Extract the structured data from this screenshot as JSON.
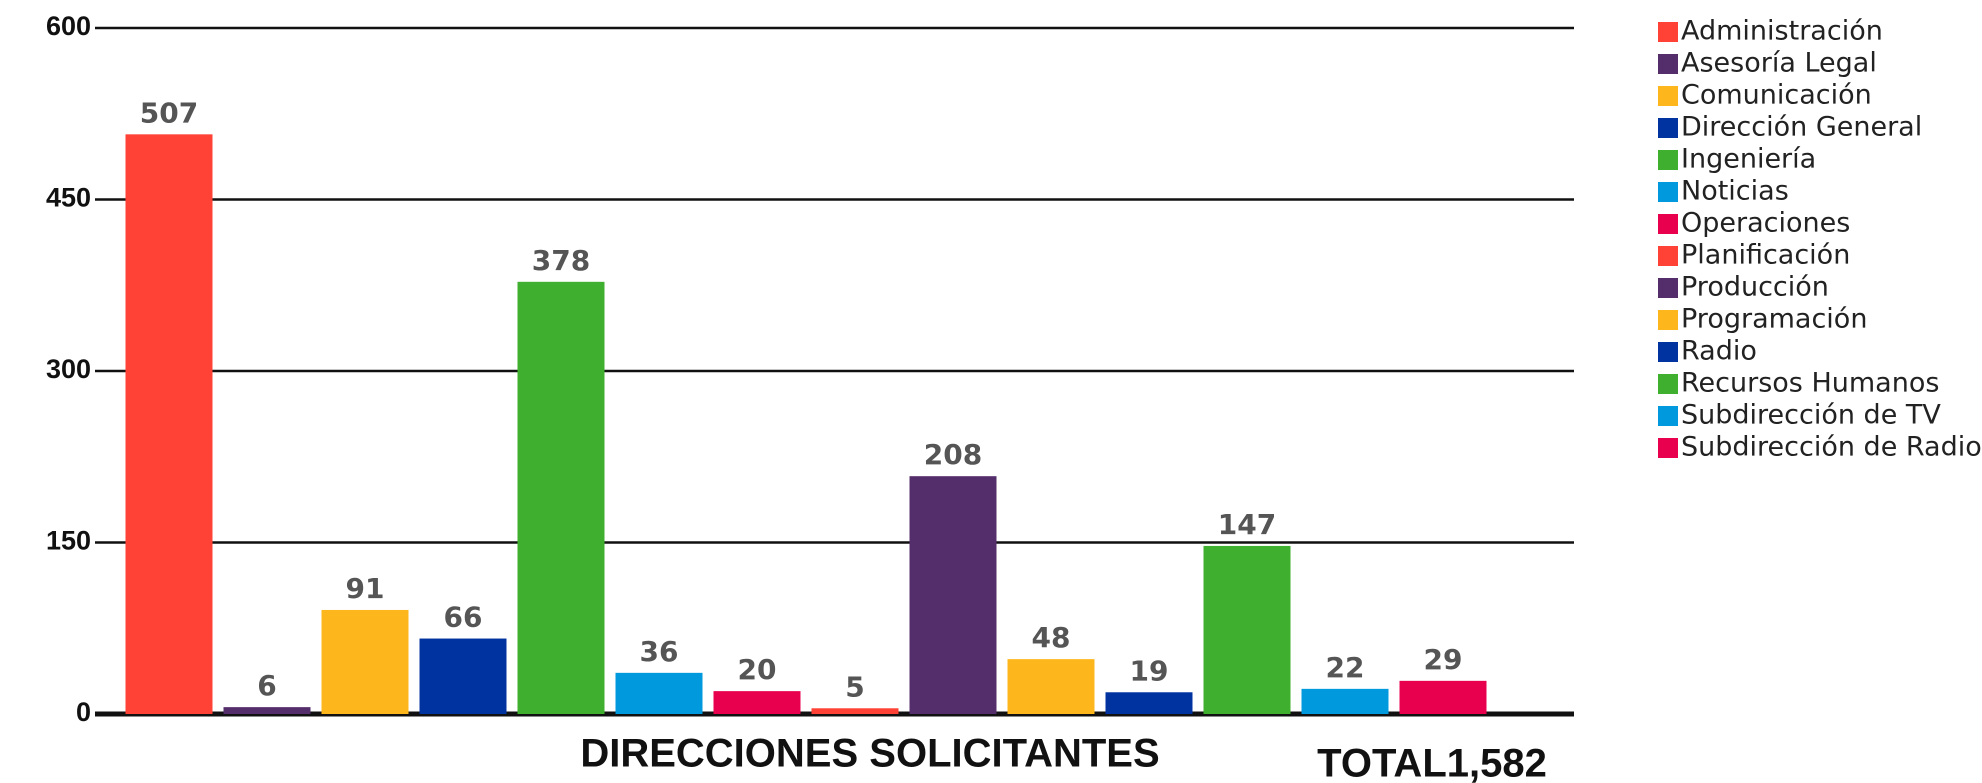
{
  "chart_data": {
    "type": "bar",
    "x_label": "DIRECCIONES SOLICITANTES",
    "annotation": "TOTAL1,582",
    "categories": [
      "Administración",
      "Asesoría Legal",
      "Comunicación",
      "Dirección General",
      "Ingeniería",
      "Noticias",
      "Operaciones",
      "Planificación",
      "Producción",
      "Programación",
      "Radio",
      "Recursos Humanos",
      "Subdirección de TV",
      "Subdirección de Radio"
    ],
    "values": [
      507,
      6,
      91,
      66,
      378,
      36,
      20,
      5,
      208,
      48,
      19,
      147,
      22,
      29
    ],
    "colors": [
      "#ff4136",
      "#542d6b",
      "#fdb71c",
      "#0033a0",
      "#3faf2f",
      "#0099dd",
      "#e8004f",
      "#ff4136",
      "#542d6b",
      "#fdb71c",
      "#0033a0",
      "#3faf2f",
      "#0099dd",
      "#e8004f"
    ],
    "ylim": [
      0,
      600
    ],
    "yticks": [
      0,
      150,
      300,
      450,
      600
    ],
    "grid": true,
    "legend": "right"
  }
}
